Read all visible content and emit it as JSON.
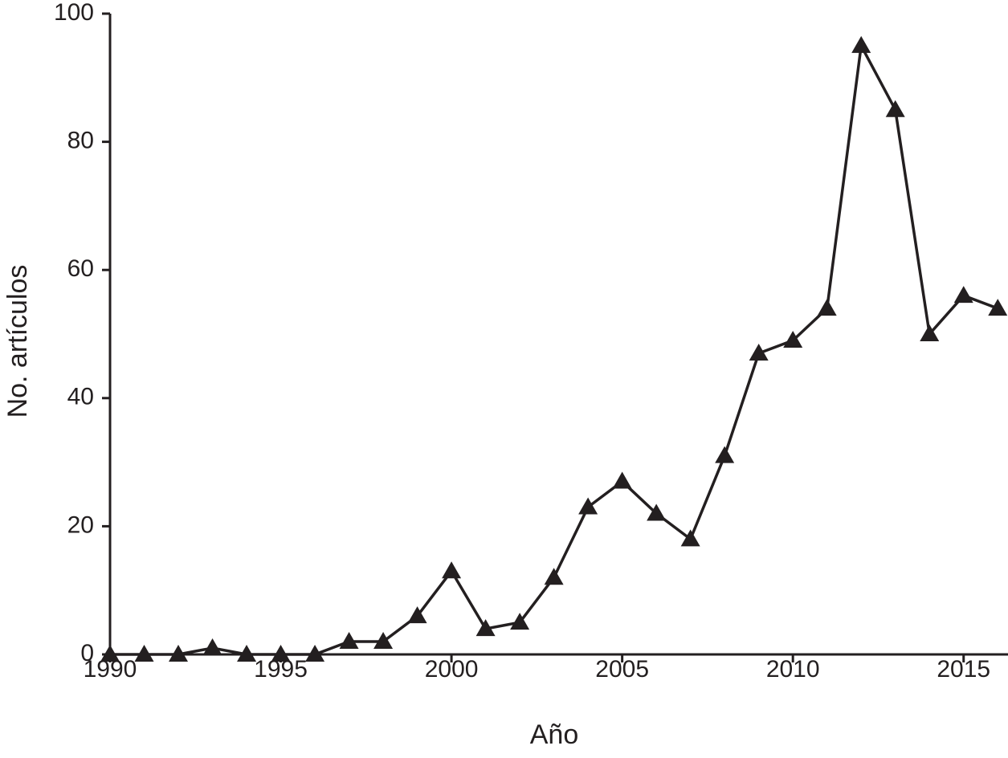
{
  "chart_data": {
    "type": "line",
    "x_label": "Año",
    "y_label": "No. artículos",
    "x": [
      1990,
      1991,
      1992,
      1993,
      1994,
      1995,
      1996,
      1997,
      1998,
      1999,
      2000,
      2001,
      2002,
      2003,
      2004,
      2005,
      2006,
      2007,
      2008,
      2009,
      2010,
      2011,
      2012,
      2013,
      2014,
      2015,
      2016
    ],
    "series": [
      {
        "color": "#231f20",
        "marker": "triangle",
        "values": [
          0,
          0,
          0,
          1,
          0,
          0,
          0,
          2,
          2,
          6,
          13,
          4,
          5,
          12,
          23,
          27,
          22,
          18,
          31,
          47,
          49,
          54,
          95,
          85,
          50,
          56,
          54
        ]
      }
    ],
    "xlim": [
      1990,
      2016.3
    ],
    "xticks": [
      1990,
      1995,
      2000,
      2005,
      2010,
      2015
    ],
    "ylim": [
      0,
      100
    ],
    "yticks": [
      0,
      20,
      40,
      60,
      80,
      100
    ],
    "grid": false
  }
}
